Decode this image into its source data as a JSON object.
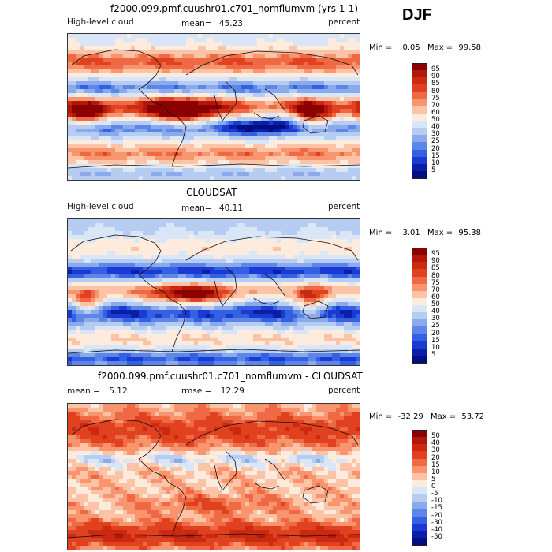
{
  "season": "DJF",
  "chart_data": [
    {
      "type": "heatmap",
      "title": "f2000.099.pmf.cuushr01.c701_nomflumvm (yrs 1-1)",
      "variable": "High-level cloud",
      "mean_label": "mean=",
      "mean": "45.23",
      "units": "percent",
      "min_label": "Min =",
      "min": "0.05",
      "max_label": "Max =",
      "max": "99.58",
      "levels": [
        "95",
        "90",
        "85",
        "80",
        "75",
        "70",
        "60",
        "50",
        "40",
        "30",
        "25",
        "20",
        "15",
        "10",
        "5"
      ],
      "colors": [
        "#8b0000",
        "#b2170b",
        "#cc2a10",
        "#e0421f",
        "#ef6a44",
        "#f8956f",
        "#fcc3a6",
        "#fdebde",
        "#d8e6f7",
        "#b6ccf0",
        "#8aaaec",
        "#5d86e8",
        "#3460e4",
        "#1a3ad2",
        "#0b1ea8",
        "#000f80"
      ]
    },
    {
      "type": "heatmap",
      "title": "CLOUDSAT",
      "variable": "High-level cloud",
      "mean_label": "mean=",
      "mean": "40.11",
      "units": "percent",
      "min_label": "Min =",
      "min": "3.01",
      "max_label": "Max =",
      "max": "95.38",
      "levels": [
        "95",
        "90",
        "85",
        "80",
        "75",
        "70",
        "60",
        "50",
        "40",
        "30",
        "25",
        "20",
        "15",
        "10",
        "5"
      ],
      "colors": [
        "#8b0000",
        "#b2170b",
        "#cc2a10",
        "#e0421f",
        "#ef6a44",
        "#f8956f",
        "#fcc3a6",
        "#fdebde",
        "#d8e6f7",
        "#b6ccf0",
        "#8aaaec",
        "#5d86e8",
        "#3460e4",
        "#1a3ad2",
        "#0b1ea8",
        "#000f80"
      ]
    },
    {
      "type": "heatmap",
      "title": "f2000.099.pmf.cuushr01.c701_nomflumvm - CLOUDSAT",
      "variable": "",
      "mean_label": "mean =",
      "mean": "5.12",
      "rmse_label": "rmse =",
      "rmse": "12.29",
      "units": "percent",
      "min_label": "Min =",
      "min": "-32.29",
      "max_label": "Max =",
      "max": "53.72",
      "levels": [
        "50",
        "40",
        "30",
        "20",
        "15",
        "10",
        "5",
        "0",
        "-5",
        "-10",
        "-15",
        "-20",
        "-30",
        "-40",
        "-50"
      ],
      "colors": [
        "#8b0000",
        "#b2170b",
        "#cc2a10",
        "#e0421f",
        "#ef6a44",
        "#f8956f",
        "#fcc3a6",
        "#fdebde",
        "#d8e6f7",
        "#b6ccf0",
        "#8aaaec",
        "#5d86e8",
        "#3460e4",
        "#1a3ad2",
        "#0b1ea8",
        "#000f80"
      ]
    }
  ]
}
